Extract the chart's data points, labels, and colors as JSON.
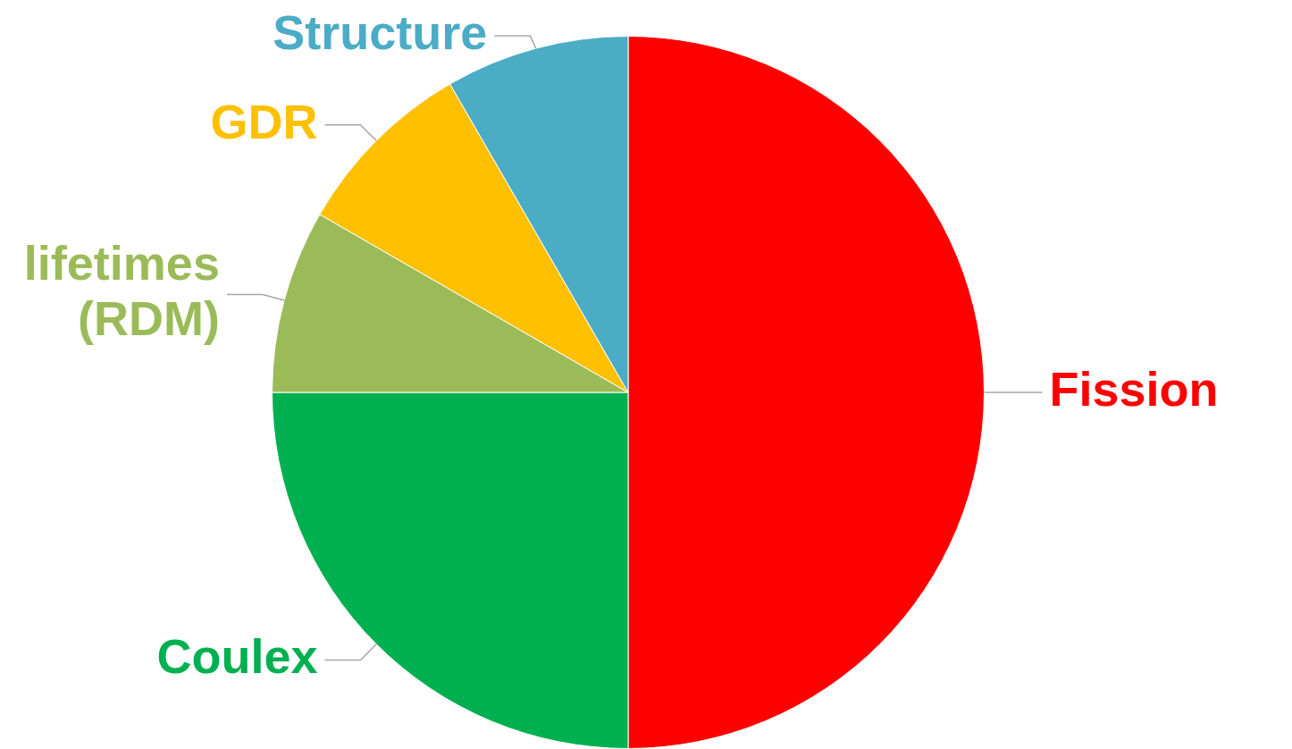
{
  "chart_data": {
    "type": "pie",
    "categories": [
      "Fission",
      "Coulex",
      "lifetimes (RDM)",
      "GDR",
      "Structure"
    ],
    "values": [
      50,
      25,
      8.33,
      8.33,
      8.34
    ],
    "colors": [
      "#ff0000",
      "#00b050",
      "#9bbb59",
      "#ffc000",
      "#4bacc6"
    ],
    "legend": false
  }
}
